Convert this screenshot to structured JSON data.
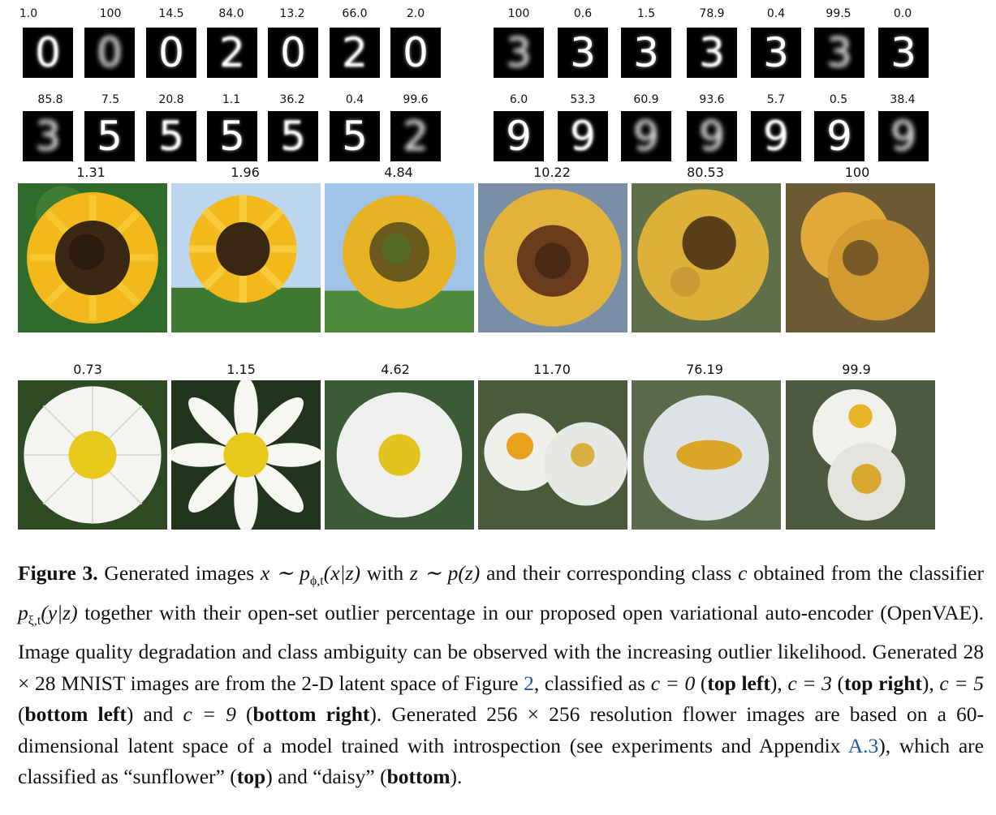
{
  "mnist_rows": [
    {
      "labels": [
        "1.0",
        "100",
        "14.5",
        "84.0",
        "13.2",
        "66.0",
        "2.0",
        "100",
        "0.6",
        "1.5",
        "78.9",
        "0.4",
        "99.5",
        "0.0"
      ],
      "digits": [
        "0",
        "0",
        "0",
        "2",
        "0",
        "2",
        "0",
        "3",
        "3",
        "3",
        "3",
        "3",
        "3",
        "3"
      ]
    },
    {
      "labels": [
        "85.8",
        "7.5",
        "20.8",
        "1.1",
        "36.2",
        "0.4",
        "99.6",
        "6.0",
        "53.3",
        "60.9",
        "93.6",
        "5.7",
        "0.5",
        "38.4"
      ],
      "digits": [
        "3",
        "5",
        "5",
        "5",
        "5",
        "5",
        "2",
        "9",
        "9",
        "9",
        "9",
        "9",
        "9",
        "9"
      ]
    }
  ],
  "sunflower_labels": [
    "1.31",
    "1.96",
    "4.84",
    "10.22",
    "80.53",
    "100"
  ],
  "daisy_labels": [
    "0.73",
    "1.15",
    "4.62",
    "11.70",
    "76.19",
    "99.9"
  ],
  "caption": {
    "fig_label": "Figure 3.",
    "t1": " Generated images ",
    "m1": "x ∼ p",
    "m1sub": "ϕ,t",
    "m1b": "(x|z)",
    "t2": " with ",
    "m2": "z ∼ p(z)",
    "t3": " and their corresponding class ",
    "m3": "c",
    "t4": " obtained from the classifier ",
    "m4": "p",
    "m4sub": "ξ,t",
    "m4b": "(y|z)",
    "t5": " together with their open-set outlier percentage in our proposed open variational auto-encoder (OpenVAE). Image quality degradation and class ambiguity can be observed with the increasing outlier likelihood. Generated 28 × 28 MNIST images are from the 2-D latent space of Figure ",
    "ref1": "2",
    "t6": ", classified as ",
    "c0": "c = 0",
    "t7": " (",
    "b1": "top left",
    "t8": "), ",
    "c3": "c = 3",
    "t9": " (",
    "b2": "top right",
    "t10": "), ",
    "c5": "c = 5",
    "t11": " (",
    "b3": "bottom left",
    "t12": ") and ",
    "c9": "c = 9",
    "t13": " (",
    "b4": "bottom right",
    "t14": "). Generated 256 × 256 resolution flower images are based on a 60-dimensional latent space of a model trained with introspection (see experiments and Appendix ",
    "ref2": "A.3",
    "t15": "), which are classified as “sunflower” (",
    "b5": "top",
    "t16": ") and “daisy” (",
    "b6": "bottom",
    "t17": ")."
  },
  "colors": {
    "sunflower_petal": "#f2b81c",
    "sunflower_center": "#3a2814",
    "daisy_petal": "#f4f4f0",
    "daisy_center": "#e7c81d",
    "link": "#1f56a8"
  }
}
